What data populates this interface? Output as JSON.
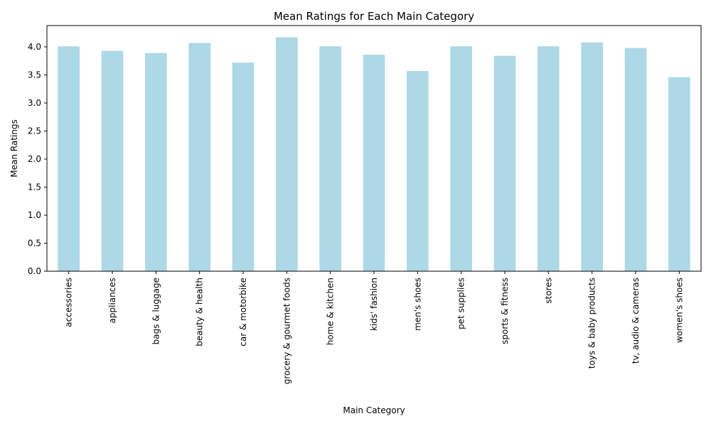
{
  "chart_data": {
    "type": "bar",
    "title": "Mean Ratings for Each Main Category",
    "xlabel": "Main Category",
    "ylabel": "Mean Ratings",
    "categories": [
      "accessories",
      "appliances",
      "bags & luggage",
      "beauty & health",
      "car & motorbike",
      "grocery & gourmet foods",
      "home & kitchen",
      "kids' fashion",
      "men's shoes",
      "pet supplies",
      "sports & fitness",
      "stores",
      "toys & baby products",
      "tv, audio & cameras",
      "women's shoes"
    ],
    "values": [
      4.01,
      3.93,
      3.89,
      4.07,
      3.72,
      4.17,
      4.01,
      3.86,
      3.57,
      4.01,
      3.84,
      4.01,
      4.08,
      3.98,
      3.46
    ],
    "ylim": [
      0,
      4.38
    ],
    "yticks": [
      "0.0",
      "0.5",
      "1.0",
      "1.5",
      "2.0",
      "2.5",
      "3.0",
      "3.5",
      "4.0"
    ],
    "bar_color": "#add8e6",
    "grid": false,
    "legend": "none"
  }
}
